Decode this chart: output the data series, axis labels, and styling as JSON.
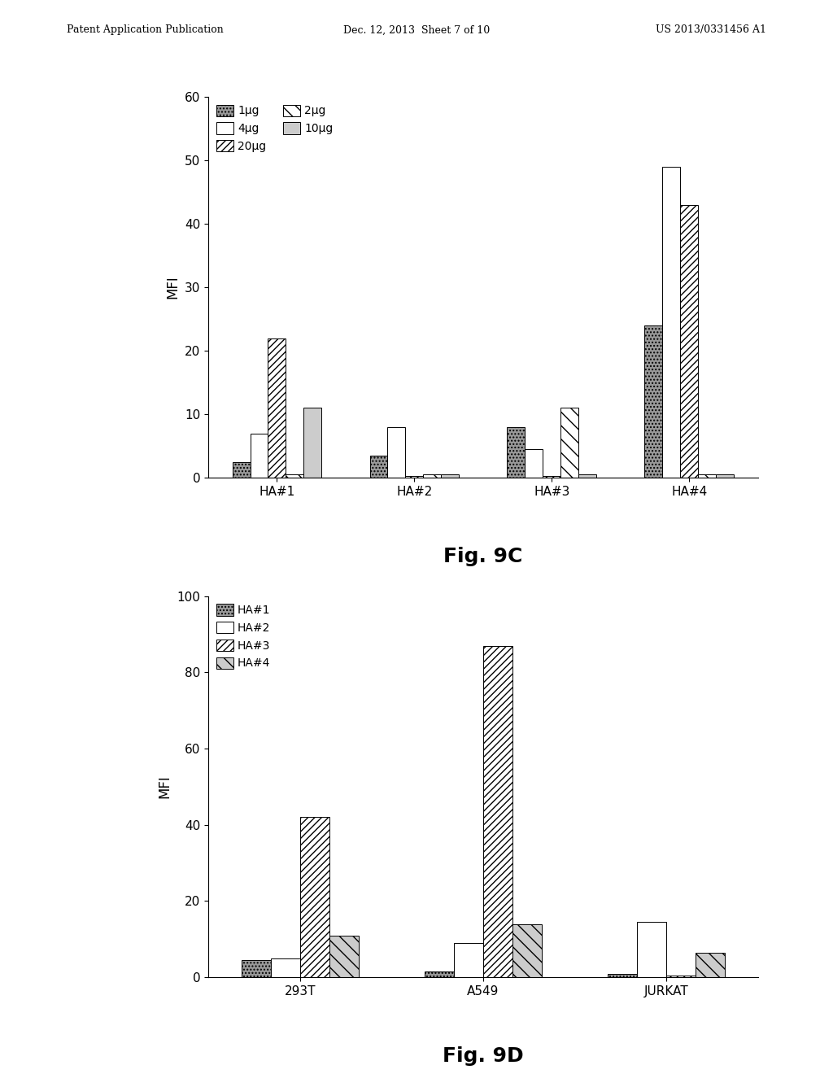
{
  "fig9c": {
    "title": "Fig. 9C",
    "ylabel": "MFI",
    "ylim": [
      0,
      60
    ],
    "yticks": [
      0,
      10,
      20,
      30,
      40,
      50,
      60
    ],
    "categories": [
      "HA#1",
      "HA#2",
      "HA#3",
      "HA#4"
    ],
    "series_labels": [
      "1μg",
      "4μg",
      "20μg",
      "2μg",
      "10μg"
    ],
    "data": {
      "1μg": [
        2.5,
        3.5,
        8.0,
        24.0
      ],
      "4μg": [
        7.0,
        8.0,
        4.5,
        49.0
      ],
      "20μg": [
        22.0,
        0.3,
        0.3,
        43.0
      ],
      "2μg": [
        0.5,
        0.5,
        11.0,
        0.5
      ],
      "10μg": [
        11.0,
        0.5,
        0.5,
        0.5
      ]
    }
  },
  "fig9d": {
    "title": "Fig. 9D",
    "ylabel": "MFI",
    "ylim": [
      0,
      100
    ],
    "yticks": [
      0,
      20,
      40,
      60,
      80,
      100
    ],
    "categories": [
      "293T",
      "A549",
      "JURKAT"
    ],
    "series_labels": [
      "HA#1",
      "HA#2",
      "HA#3",
      "HA#4"
    ],
    "data": {
      "HA#1": [
        4.5,
        1.5,
        1.0
      ],
      "HA#2": [
        5.0,
        9.0,
        14.5
      ],
      "HA#3": [
        42.0,
        87.0,
        0.5
      ],
      "HA#4": [
        11.0,
        14.0,
        6.5
      ]
    }
  },
  "header_left": "Patent Application Publication",
  "header_center": "Dec. 12, 2013  Sheet 7 of 10",
  "header_right": "US 2013/0331456 A1",
  "background_color": "#ffffff"
}
